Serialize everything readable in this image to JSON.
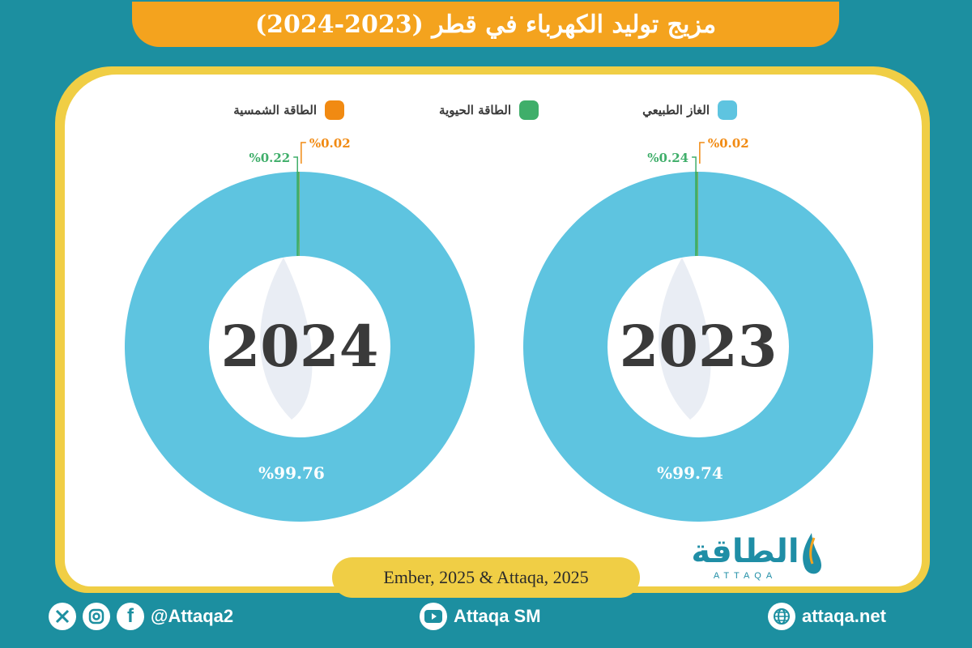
{
  "title": "مزيج توليد الكهرباء في قطر (2023-2024)",
  "legend": [
    {
      "label": "الغاز الطبيعي",
      "color": "#5ec4e0"
    },
    {
      "label": "الطاقة الحيوية",
      "color": "#3fae6a"
    },
    {
      "label": "الطاقة الشمسية",
      "color": "#f18a12"
    }
  ],
  "chart_data": [
    {
      "type": "pie",
      "center_label": "2023",
      "slices": [
        {
          "name": "الغاز الطبيعي",
          "value": 99.74,
          "label": "%99.74",
          "color": "#5ec4e0"
        },
        {
          "name": "الطاقة الحيوية",
          "value": 0.24,
          "label": "%0.24",
          "color": "#3fae6a"
        },
        {
          "name": "الطاقة الشمسية",
          "value": 0.02,
          "label": "%0.02",
          "color": "#f18a12"
        }
      ]
    },
    {
      "type": "pie",
      "center_label": "2024",
      "slices": [
        {
          "name": "الغاز الطبيعي",
          "value": 99.76,
          "label": "%99.76",
          "color": "#5ec4e0"
        },
        {
          "name": "الطاقة الحيوية",
          "value": 0.22,
          "label": "%0.22",
          "color": "#3fae6a"
        },
        {
          "name": "الطاقة الشمسية",
          "value": 0.02,
          "label": "%0.02",
          "color": "#f18a12"
        }
      ]
    }
  ],
  "source": "Ember, 2025 & Attaqa, 2025",
  "logo": {
    "text": "الطاقة",
    "subtext": "ATTAQA"
  },
  "footer": {
    "social_handle": "@Attaqa2",
    "youtube": "Attaqa SM",
    "website": "attaqa.net",
    "icons": [
      "x-icon",
      "instagram-icon",
      "facebook-icon",
      "youtube-icon",
      "globe-icon"
    ]
  }
}
